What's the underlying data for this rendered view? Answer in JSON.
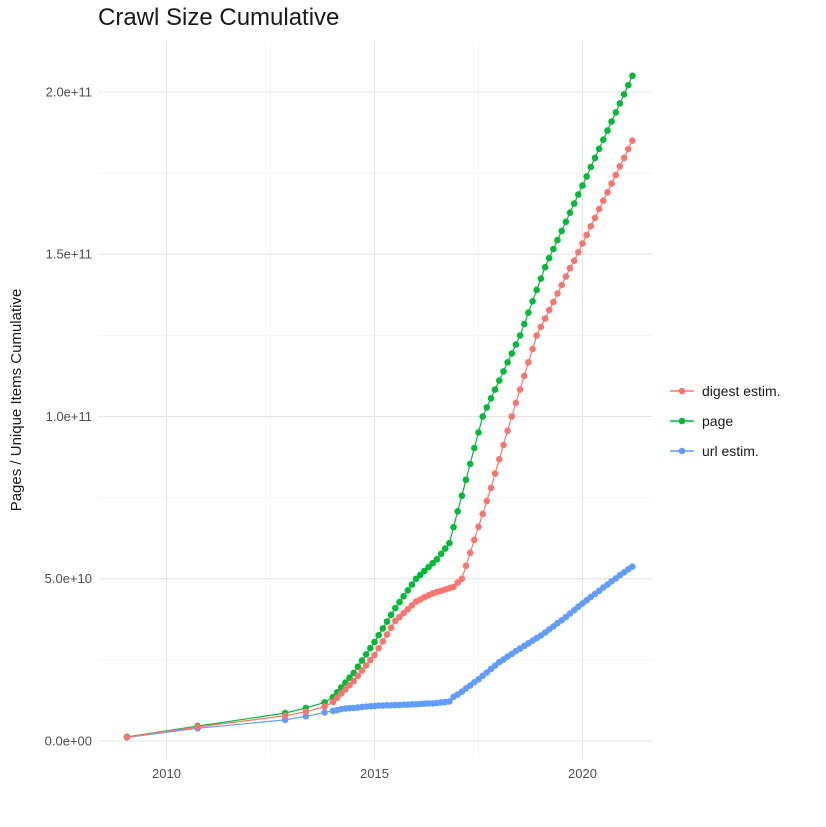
{
  "chart_data": {
    "type": "scatter",
    "mode": "line+points",
    "title": "Crawl Size Cumulative",
    "xlabel": "",
    "ylabel": "Pages / Unique Items Cumulative",
    "legend_position": "right",
    "grid": "major+minor",
    "xlim": [
      2008.35,
      2021.7
    ],
    "ylim": [
      -5000000000,
      215000000000
    ],
    "values_unit": "billions (1e9)",
    "x_ticks": [
      {
        "value": 2010,
        "label": "2010"
      },
      {
        "value": 2015,
        "label": "2015"
      },
      {
        "value": 2020,
        "label": "2020"
      }
    ],
    "y_ticks": [
      {
        "value_e9": 0,
        "label": "0.0e+00"
      },
      {
        "value_e9": 50,
        "label": "5.0e+10"
      },
      {
        "value_e9": 100,
        "label": "1.0e+11"
      },
      {
        "value_e9": 150,
        "label": "1.5e+11"
      },
      {
        "value_e9": 200,
        "label": "2.0e+11"
      }
    ],
    "x_minor_gridlines": [
      2012.5,
      2017.5
    ],
    "y_minor_gridlines_e9": [
      25,
      75,
      125,
      175
    ],
    "x": [
      2009.05,
      2010.75,
      2012.85,
      2013.35,
      2013.8,
      2014,
      2014.1,
      2014.2,
      2014.3,
      2014.4,
      2014.5,
      2014.6,
      2014.7,
      2014.8,
      2014.9,
      2015,
      2015.1,
      2015.2,
      2015.3,
      2015.4,
      2015.5,
      2015.6,
      2015.7,
      2015.8,
      2015.9,
      2016,
      2016.1,
      2016.2,
      2016.3,
      2016.4,
      2016.5,
      2016.6,
      2016.7,
      2016.8,
      2016.9,
      2017,
      2017.1,
      2017.2,
      2017.3,
      2017.4,
      2017.5,
      2017.6,
      2017.7,
      2017.8,
      2017.9,
      2018,
      2018.1,
      2018.2,
      2018.3,
      2018.4,
      2018.5,
      2018.6,
      2018.7,
      2018.8,
      2018.9,
      2019,
      2019.1,
      2019.2,
      2019.3,
      2019.4,
      2019.5,
      2019.6,
      2019.7,
      2019.8,
      2019.9,
      2020,
      2020.1,
      2020.2,
      2020.3,
      2020.4,
      2020.5,
      2020.6,
      2020.7,
      2020.8,
      2020.9,
      2021,
      2021.1,
      2021.2
    ],
    "series": [
      {
        "name": "digest estim.",
        "color": "#F8766D",
        "values_e9": [
          1.2,
          4.3,
          7.8,
          9,
          10.6,
          12,
          13.3,
          14.6,
          15.9,
          17.2,
          18.5,
          20.1,
          21.7,
          23.3,
          24.9,
          26.5,
          28.6,
          30.7,
          32.8,
          34.9,
          37,
          38.2,
          39.4,
          40.6,
          41.8,
          43,
          43.6,
          44.3,
          44.9,
          45.5,
          45.9,
          46.3,
          46.7,
          47.1,
          47.5,
          48.8,
          50,
          54,
          58,
          62,
          66,
          70,
          74,
          78,
          82.4,
          86.8,
          91.2,
          95.6,
          100,
          104.2,
          108.3,
          112.5,
          116.7,
          120.8,
          125,
          127.6,
          130.2,
          132.8,
          135.3,
          137.9,
          140.5,
          143.1,
          145.7,
          148,
          150.6,
          153.3,
          155.9,
          158.6,
          161.2,
          163.9,
          166.5,
          169.1,
          171.8,
          174.4,
          177.1,
          179.7,
          182.4,
          185
        ]
      },
      {
        "name": "page",
        "color": "#00BA38",
        "values_e9": [
          1.3,
          4.6,
          8.6,
          10.2,
          11.9,
          13.5,
          15,
          16.5,
          18,
          19.5,
          21,
          22.9,
          24.8,
          26.7,
          28.6,
          30.5,
          32.6,
          34.7,
          36.8,
          38.9,
          41,
          42.8,
          44.6,
          46.4,
          48.2,
          50,
          51.2,
          52.4,
          53.6,
          54.8,
          56,
          57.7,
          59.3,
          61,
          65.9,
          70.8,
          75.6,
          80.5,
          85.4,
          90.3,
          95.1,
          100,
          102.8,
          105.6,
          108.3,
          111.1,
          113.9,
          116.7,
          119.4,
          122.2,
          125,
          128.5,
          132,
          135.5,
          139,
          142.5,
          146,
          148.8,
          151.6,
          154.4,
          157.2,
          160,
          162.8,
          165.6,
          168.4,
          171.2,
          174,
          176.9,
          179.7,
          182.5,
          185.3,
          188.1,
          190.9,
          193.7,
          196.5,
          199.3,
          202.1,
          205
        ]
      },
      {
        "name": "url estim.",
        "color": "#619CFF",
        "values_e9": [
          1.1,
          3.9,
          6.5,
          7.6,
          8.8,
          9.3,
          9.5,
          9.8,
          10,
          10.1,
          10.2,
          10.3,
          10.5,
          10.6,
          10.7,
          10.8,
          10.9,
          10.9,
          11,
          11,
          11.1,
          11.1,
          11.2,
          11.2,
          11.3,
          11.3,
          11.4,
          11.5,
          11.6,
          11.6,
          11.7,
          11.9,
          12,
          12.2,
          13.6,
          14.3,
          15.2,
          16.2,
          17.1,
          18.1,
          19,
          20.1,
          21.1,
          22.2,
          23.2,
          24.3,
          25.1,
          26,
          26.8,
          27.7,
          28.5,
          29.3,
          30.1,
          30.9,
          31.7,
          32.5,
          33.4,
          34.4,
          35.3,
          36.3,
          37.2,
          38.2,
          39.3,
          40.3,
          41.4,
          42.4,
          43.4,
          44.4,
          45.3,
          46.3,
          47.3,
          48.2,
          49.2,
          50.1,
          51.1,
          52,
          52.9,
          53.7
        ]
      }
    ],
    "style": {
      "grid_major_color": "#e4e4e4",
      "grid_minor_color": "#f2f2f2",
      "tick_text_color": "#4d4d4d",
      "text_color": "#1a1a1a",
      "point_radius": 3.3,
      "line_width": 1.2
    }
  },
  "legend": {
    "items": [
      {
        "label": "digest estim.",
        "color": "#F8766D"
      },
      {
        "label": "page",
        "color": "#00BA38"
      },
      {
        "label": "url estim.",
        "color": "#619CFF"
      }
    ]
  }
}
